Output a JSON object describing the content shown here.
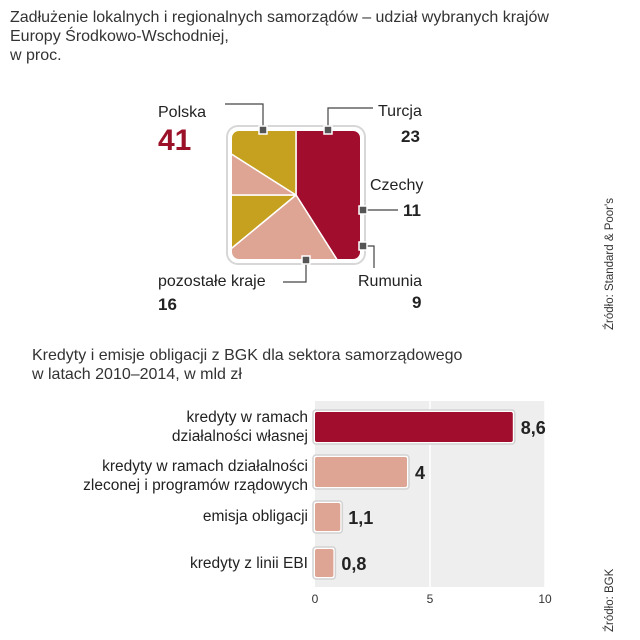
{
  "chart_data": [
    {
      "type": "pie",
      "title_lines": [
        "Zadłużenie lokalnych i regionalnych samorządów – udział wybranych krajów",
        "Europy Środkowo-Wschodniej,",
        "w proc."
      ],
      "slices": [
        {
          "label": "Polska",
          "value": 41,
          "value_label": "41",
          "color": "#a10d2c"
        },
        {
          "label": "Turcja",
          "value": 23,
          "value_label": "23",
          "color": "#dea595"
        },
        {
          "label": "Czechy",
          "value": 11,
          "value_label": "11",
          "color": "#c6a120"
        },
        {
          "label": "Rumunia",
          "value": 9,
          "value_label": "9",
          "color": "#dea595"
        },
        {
          "label": "pozostałe kraje",
          "value": 16,
          "value_label": "16",
          "color": "#c6a120"
        }
      ],
      "source": "Źródło: Standard & Poor's"
    },
    {
      "type": "bar",
      "orientation": "horizontal",
      "title_lines": [
        "Kredyty i emisje obligacji z BGK dla sektora samorządowego",
        "w latach 2010–2014, w mld zł"
      ],
      "categories": [
        {
          "lines": [
            "kredyty w ramach",
            "działalności własnej"
          ]
        },
        {
          "lines": [
            "kredyty w ramach działalności",
            "zleconej i programów rządowych"
          ]
        },
        {
          "lines": [
            "emisja obligacji"
          ]
        },
        {
          "lines": [
            "kredyty z linii EBI"
          ]
        }
      ],
      "values": [
        8.6,
        4,
        1.1,
        0.8
      ],
      "value_labels": [
        "8,6",
        "4",
        "1,1",
        "0,8"
      ],
      "colors": [
        "#a10d2c",
        "#dea595",
        "#dea595",
        "#dea595"
      ],
      "xlim": [
        0,
        10
      ],
      "ticks": [
        {
          "value": 0,
          "label": "0"
        },
        {
          "value": 5,
          "label": "5"
        },
        {
          "value": 10,
          "label": "10"
        }
      ],
      "source": "Źródło: BGK"
    }
  ]
}
